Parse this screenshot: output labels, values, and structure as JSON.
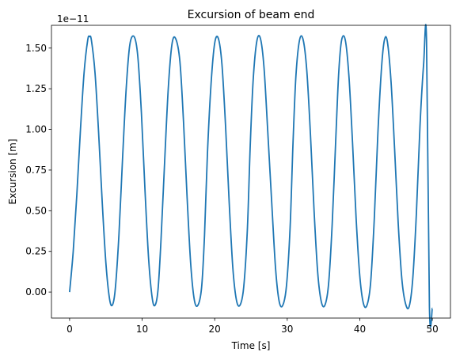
{
  "chart_data": {
    "type": "line",
    "title": "Excursion of beam end",
    "xlabel": "Time [s]",
    "ylabel": "Excursion [m]",
    "y_offset_label": "1e−11",
    "y_scale_exponent": -11,
    "xlim": [
      -2.5,
      52.5
    ],
    "ylim": [
      -0.16,
      1.64
    ],
    "x_ticks": [
      0,
      10,
      20,
      30,
      40,
      50
    ],
    "x_tick_labels": [
      "0",
      "10",
      "20",
      "30",
      "40",
      "50"
    ],
    "y_ticks": [
      0.0,
      0.25,
      0.5,
      0.75,
      1.0,
      1.25,
      1.5
    ],
    "y_tick_labels": [
      "0.00",
      "0.25",
      "0.50",
      "0.75",
      "1.00",
      "1.25",
      "1.50"
    ],
    "grid": false,
    "series": [
      {
        "color": "#1f77b4",
        "x": [
          0.0,
          0.5,
          1.0,
          1.5,
          2.0,
          2.5,
          2.75,
          3.0,
          3.5,
          4.0,
          4.5,
          5.0,
          5.5,
          5.9,
          6.3,
          6.8,
          7.3,
          7.8,
          8.3,
          8.9,
          9.4,
          9.9,
          10.4,
          10.9,
          11.4,
          11.8,
          12.2,
          12.6,
          13.1,
          13.6,
          14.1,
          14.6,
          15.2,
          15.7,
          16.2,
          16.7,
          17.2,
          17.7,
          18.2,
          18.6,
          19.0,
          19.5,
          20.0,
          20.5,
          21.0,
          21.5,
          22.0,
          22.5,
          23.0,
          23.5,
          24.0,
          24.5,
          24.9,
          25.3,
          25.8,
          26.3,
          26.8,
          27.3,
          27.9,
          28.4,
          28.9,
          29.4,
          29.9,
          30.4,
          30.8,
          31.2,
          31.7,
          32.2,
          32.7,
          33.2,
          33.7,
          34.2,
          34.7,
          35.2,
          35.7,
          36.2,
          36.7,
          37.1,
          37.5,
          38.0,
          38.5,
          39.0,
          39.5,
          40.0,
          40.5,
          41.0,
          41.5,
          42.0,
          42.5,
          43.0,
          43.4,
          43.8,
          44.3,
          44.8,
          45.3,
          45.8,
          46.3,
          46.8,
          47.3,
          47.8,
          48.3,
          48.8,
          49.2,
          49.6,
          50.0
        ],
        "y": [
          0.0,
          0.25,
          0.6,
          1.0,
          1.35,
          1.55,
          1.57,
          1.55,
          1.35,
          0.98,
          0.55,
          0.18,
          -0.04,
          -0.08,
          0.02,
          0.35,
          0.82,
          1.25,
          1.52,
          1.57,
          1.45,
          1.1,
          0.62,
          0.2,
          -0.04,
          -0.08,
          0.02,
          0.32,
          0.8,
          1.25,
          1.52,
          1.56,
          1.42,
          1.05,
          0.58,
          0.17,
          -0.05,
          -0.08,
          0.03,
          0.35,
          0.85,
          1.28,
          1.53,
          1.56,
          1.4,
          1.02,
          0.55,
          0.15,
          -0.05,
          -0.08,
          0.03,
          0.38,
          0.9,
          1.3,
          1.54,
          1.56,
          1.38,
          1.0,
          0.52,
          0.14,
          -0.06,
          -0.08,
          0.04,
          0.4,
          0.92,
          1.33,
          1.55,
          1.55,
          1.36,
          0.97,
          0.5,
          0.12,
          -0.06,
          -0.08,
          0.05,
          0.42,
          0.95,
          1.35,
          1.55,
          1.55,
          1.33,
          0.92,
          0.45,
          0.1,
          -0.07,
          -0.08,
          0.06,
          0.45,
          0.98,
          1.38,
          1.55,
          1.54,
          1.3,
          0.88,
          0.42,
          0.08,
          -0.07,
          -0.09,
          0.08,
          0.48,
          1.02,
          1.4,
          1.55,
          -0.09,
          -0.1
        ]
      }
    ]
  }
}
